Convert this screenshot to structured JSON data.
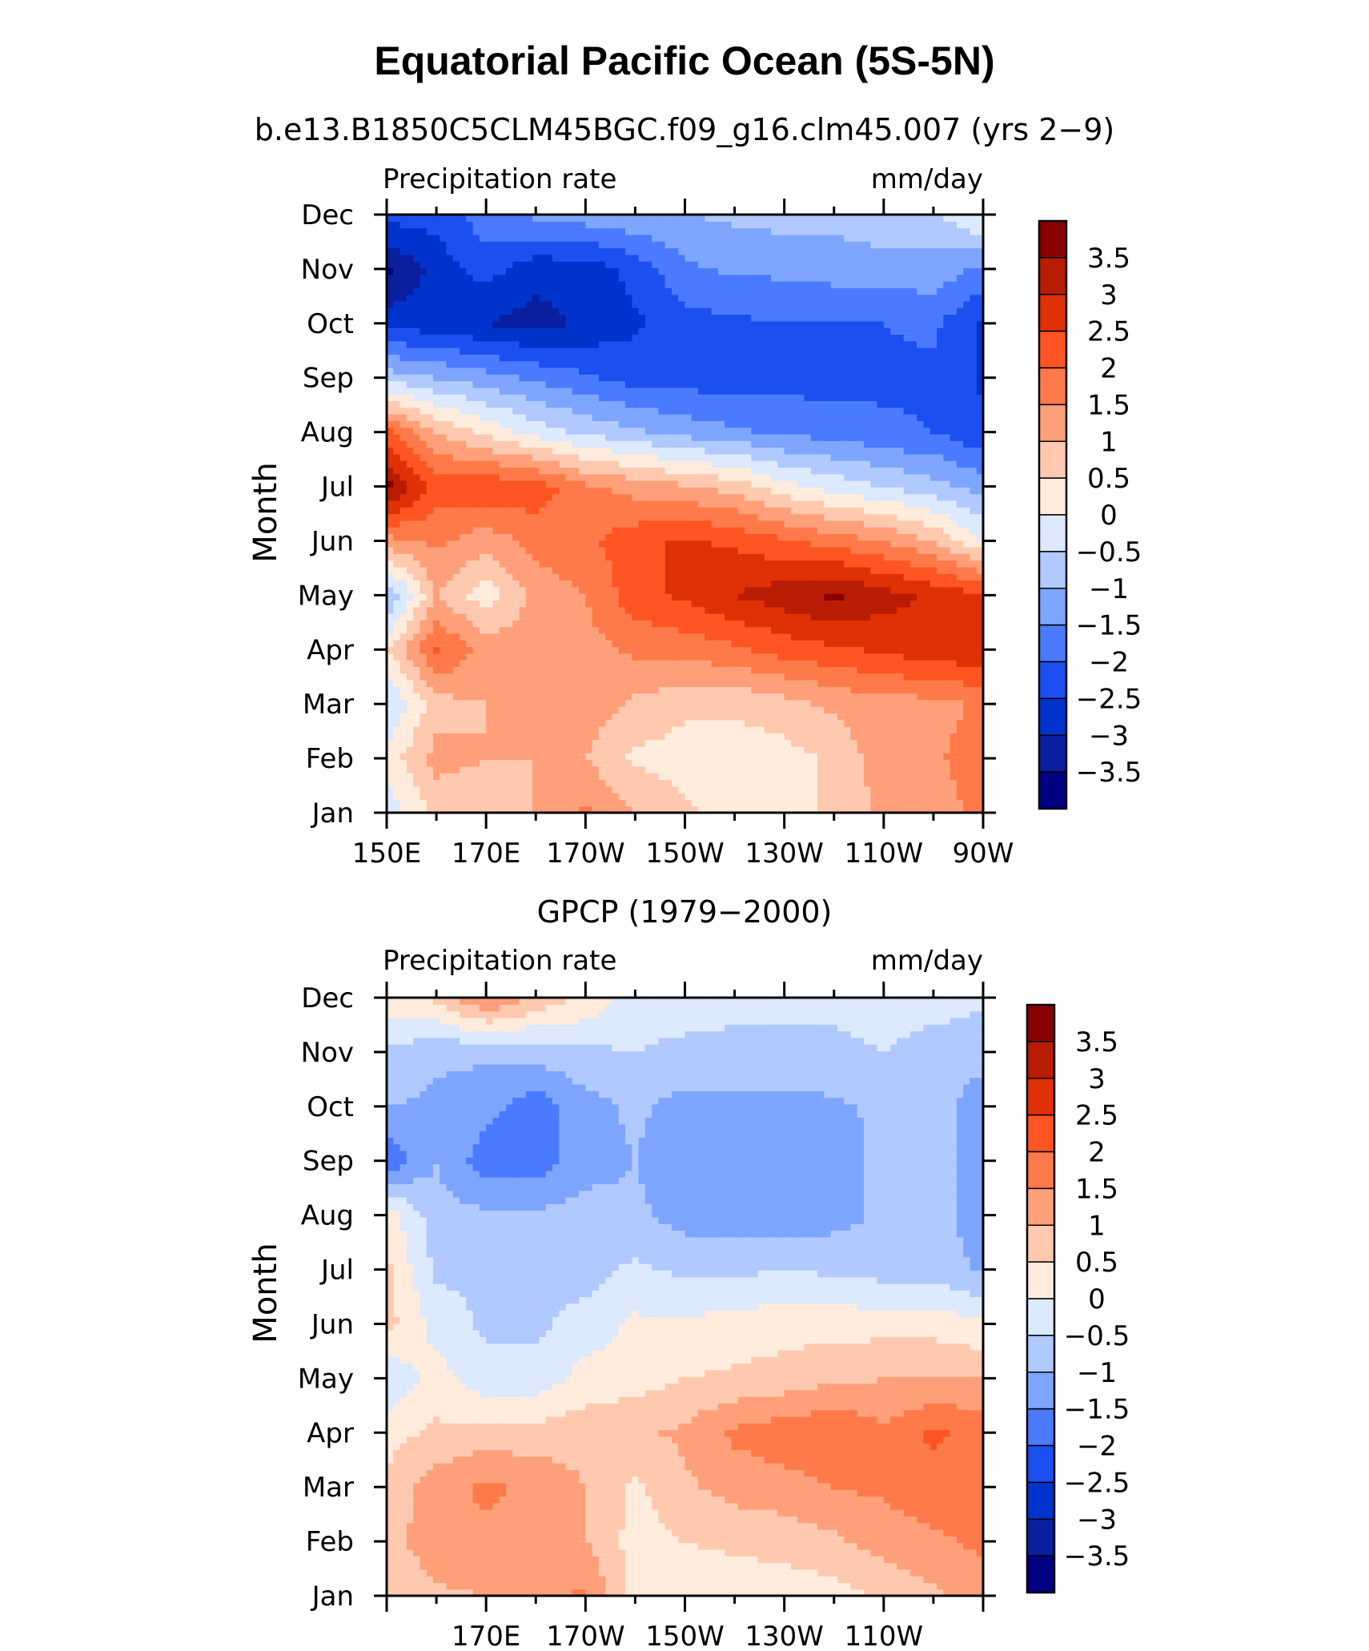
{
  "title": "Equatorial Pacific Ocean (5S-5N)",
  "chart_data": [
    {
      "type": "heatmap",
      "subtitle": "b.e13.B1850C5CLM45BGC.f09_g16.clm45.007 (yrs 2−9)",
      "left_string": "Precipitation rate",
      "right_string": "mm/day",
      "ylabel": "Month",
      "y_ticks": [
        "Jan",
        "Feb",
        "Mar",
        "Apr",
        "May",
        "Jun",
        "Jul",
        "Aug",
        "Sep",
        "Oct",
        "Nov",
        "Dec"
      ],
      "x_ticks": [
        "150E",
        "170E",
        "170W",
        "150W",
        "130W",
        "110W",
        "90W"
      ],
      "x": [
        "150E",
        "160E",
        "170E",
        "180",
        "170W",
        "160W",
        "150W",
        "140W",
        "130W",
        "120W",
        "110W",
        "100W",
        "90W"
      ],
      "y": [
        "Jan",
        "Feb",
        "Mar",
        "Apr",
        "May",
        "Jun",
        "Jul",
        "Aug",
        "Sep",
        "Oct",
        "Nov",
        "Dec"
      ],
      "values": [
        [
          -0.3,
          0.6,
          0.6,
          1.0,
          1.6,
          1.0,
          0.6,
          0.3,
          0.3,
          0.6,
          1.1,
          1.3,
          1.6
        ],
        [
          0.2,
          1.2,
          1.0,
          1.0,
          1.0,
          0.4,
          0.3,
          0.2,
          0.3,
          0.6,
          1.3,
          1.4,
          1.8
        ],
        [
          -0.6,
          0.8,
          1.0,
          1.0,
          1.3,
          0.9,
          0.6,
          0.6,
          0.8,
          1.1,
          1.3,
          1.3,
          1.6
        ],
        [
          0.4,
          2.1,
          1.3,
          1.3,
          1.3,
          1.6,
          1.7,
          1.9,
          2.2,
          2.4,
          2.6,
          2.8,
          2.9
        ],
        [
          -1.1,
          1.0,
          0.2,
          1.2,
          1.5,
          2.3,
          2.6,
          3.0,
          3.3,
          3.6,
          3.2,
          2.9,
          2.6
        ],
        [
          1.3,
          1.6,
          1.2,
          1.7,
          1.9,
          2.3,
          2.6,
          2.4,
          2.1,
          1.8,
          1.5,
          1.0,
          0.0
        ],
        [
          3.7,
          2.3,
          2.4,
          2.3,
          1.6,
          1.3,
          1.1,
          0.8,
          0.2,
          -0.2,
          -0.5,
          -0.8,
          -1.2
        ],
        [
          2.2,
          1.0,
          0.4,
          -0.2,
          -0.6,
          -0.9,
          -1.2,
          -1.4,
          -1.6,
          -1.7,
          -1.9,
          -2.0,
          -2.4
        ],
        [
          -0.7,
          -1.0,
          -1.3,
          -1.6,
          -1.9,
          -2.2,
          -2.2,
          -2.3,
          -2.2,
          -2.2,
          -2.1,
          -2.1,
          -2.6
        ],
        [
          -2.7,
          -2.8,
          -3.0,
          -3.2,
          -2.9,
          -2.6,
          -2.2,
          -2.1,
          -2.0,
          -2.0,
          -2.0,
          -1.9,
          -2.6
        ],
        [
          -3.6,
          -2.8,
          -2.3,
          -2.8,
          -2.8,
          -2.3,
          -1.6,
          -1.4,
          -1.4,
          -1.3,
          -1.2,
          -1.2,
          -1.6
        ],
        [
          -2.3,
          -2.3,
          -1.7,
          -1.4,
          -1.2,
          -1.1,
          -1.0,
          -0.9,
          -0.8,
          -0.8,
          -0.7,
          -0.6,
          0.1
        ]
      ],
      "colorbar_labels": [
        "3.5",
        "3",
        "2.5",
        "2",
        "1.5",
        "1",
        "0.5",
        "0",
        "−0.5",
        "−1",
        "−1.5",
        "−2",
        "−2.5",
        "−3",
        "−3.5"
      ],
      "levels": [
        -3.5,
        -3,
        -2.5,
        -2,
        -1.5,
        -1,
        -0.5,
        0,
        0.5,
        1,
        1.5,
        2,
        2.5,
        3,
        3.5
      ],
      "colors": [
        "#000080",
        "#0a1ea0",
        "#0033cc",
        "#1c4ff0",
        "#4a7aff",
        "#7ea5ff",
        "#b0c9ff",
        "#dce9ff",
        "#ffecdc",
        "#ffc9b0",
        "#ffa07a",
        "#ff7a4a",
        "#ff5522",
        "#e03006",
        "#b81c03",
        "#880000"
      ]
    },
    {
      "type": "heatmap",
      "subtitle": "GPCP (1979−2000)",
      "left_string": "Precipitation rate",
      "right_string": "mm/day",
      "ylabel": "Month",
      "y_ticks": [
        "Jan",
        "Feb",
        "Mar",
        "Apr",
        "May",
        "Jun",
        "Jul",
        "Aug",
        "Sep",
        "Oct",
        "Nov",
        "Dec"
      ],
      "x_ticks": [
        "170E",
        "170W",
        "150W",
        "130W",
        "110W"
      ],
      "x": [
        "150E",
        "160E",
        "170E",
        "180",
        "170W",
        "160W",
        "150W",
        "140W",
        "130W",
        "120W",
        "110W",
        "100W",
        "90W"
      ],
      "y": [
        "Jan",
        "Feb",
        "Mar",
        "Apr",
        "May",
        "Jun",
        "Jul",
        "Aug",
        "Sep",
        "Oct",
        "Nov",
        "Dec"
      ],
      "values": [
        [
          0.6,
          0.9,
          1.0,
          1.3,
          1.6,
          0.3,
          0.2,
          0.2,
          0.2,
          0.3,
          0.6,
          0.9,
          1.3
        ],
        [
          0.8,
          1.3,
          1.4,
          1.3,
          1.0,
          0.3,
          0.5,
          0.6,
          0.7,
          0.9,
          1.2,
          1.4,
          1.6
        ],
        [
          0.6,
          1.3,
          1.6,
          1.4,
          1.0,
          0.4,
          0.9,
          1.2,
          1.3,
          1.5,
          1.6,
          1.8,
          1.7
        ],
        [
          0.3,
          0.6,
          0.7,
          0.7,
          0.8,
          0.9,
          1.1,
          1.6,
          1.8,
          2.0,
          1.6,
          2.1,
          1.8
        ],
        [
          -0.4,
          0.2,
          -0.3,
          -0.3,
          0.2,
          0.3,
          0.5,
          0.6,
          0.7,
          0.9,
          1.0,
          1.0,
          1.0
        ],
        [
          0.7,
          -0.2,
          -0.6,
          -0.6,
          -0.3,
          0.1,
          0.1,
          0.2,
          0.3,
          0.3,
          0.3,
          0.3,
          0.1
        ],
        [
          0.6,
          -0.6,
          -0.6,
          -0.6,
          -0.7,
          -0.4,
          -0.6,
          -0.6,
          -0.5,
          -0.6,
          -0.7,
          -0.7,
          -1.1
        ],
        [
          0.3,
          -0.8,
          -0.9,
          -0.9,
          -0.8,
          -0.9,
          -1.2,
          -1.3,
          -1.3,
          -1.2,
          -0.9,
          -0.8,
          -1.3
        ],
        [
          -1.9,
          -1.0,
          -1.8,
          -1.8,
          -1.2,
          -1.0,
          -1.4,
          -1.3,
          -1.3,
          -1.2,
          -0.9,
          -0.8,
          -1.2
        ],
        [
          -1.0,
          -1.1,
          -1.3,
          -1.8,
          -1.2,
          -0.9,
          -1.2,
          -1.2,
          -1.2,
          -1.1,
          -0.9,
          -0.8,
          -1.3
        ],
        [
          -0.6,
          -0.9,
          -0.9,
          -0.8,
          -0.6,
          -0.5,
          -0.6,
          -0.6,
          -0.6,
          -0.6,
          -0.5,
          -0.7,
          -0.8
        ],
        [
          0.3,
          0.6,
          1.6,
          0.9,
          0.4,
          -0.3,
          -0.3,
          -0.4,
          -0.4,
          -0.4,
          -0.3,
          -0.3,
          -0.4
        ]
      ],
      "colorbar_labels": [
        "3.5",
        "3",
        "2.5",
        "2",
        "1.5",
        "1",
        "0.5",
        "0",
        "−0.5",
        "−1",
        "−1.5",
        "−2",
        "−2.5",
        "−3",
        "−3.5"
      ],
      "levels": [
        -3.5,
        -3,
        -2.5,
        -2,
        -1.5,
        -1,
        -0.5,
        0,
        0.5,
        1,
        1.5,
        2,
        2.5,
        3,
        3.5
      ],
      "colors": [
        "#000080",
        "#0a1ea0",
        "#0033cc",
        "#1c4ff0",
        "#4a7aff",
        "#7ea5ff",
        "#b0c9ff",
        "#dce9ff",
        "#ffecdc",
        "#ffc9b0",
        "#ffa07a",
        "#ff7a4a",
        "#ff5522",
        "#e03006",
        "#b81c03",
        "#880000"
      ]
    }
  ]
}
